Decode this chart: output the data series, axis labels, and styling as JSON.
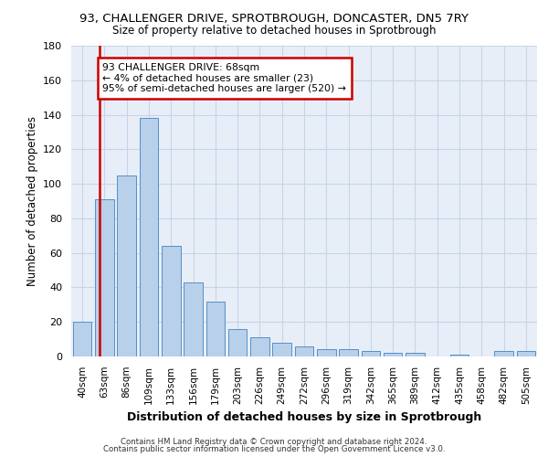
{
  "title_line1": "93, CHALLENGER DRIVE, SPROTBROUGH, DONCASTER, DN5 7RY",
  "title_line2": "Size of property relative to detached houses in Sprotbrough",
  "xlabel": "Distribution of detached houses by size in Sprotbrough",
  "ylabel": "Number of detached properties",
  "categories": [
    "40sqm",
    "63sqm",
    "86sqm",
    "109sqm",
    "133sqm",
    "156sqm",
    "179sqm",
    "203sqm",
    "226sqm",
    "249sqm",
    "272sqm",
    "296sqm",
    "319sqm",
    "342sqm",
    "365sqm",
    "389sqm",
    "412sqm",
    "435sqm",
    "458sqm",
    "482sqm",
    "505sqm"
  ],
  "values": [
    20,
    91,
    105,
    138,
    64,
    43,
    32,
    16,
    11,
    8,
    6,
    4,
    4,
    3,
    2,
    2,
    0,
    1,
    0,
    3,
    3
  ],
  "bar_color": "#b8d0ea",
  "bar_edge_color": "#5590c8",
  "highlight_color": "#cc0000",
  "property_label": "93 CHALLENGER DRIVE: 68sqm",
  "annotation_line2": "← 4% of detached houses are smaller (23)",
  "annotation_line3": "95% of semi-detached houses are larger (520) →",
  "ylim": [
    0,
    180
  ],
  "yticks": [
    0,
    20,
    40,
    60,
    80,
    100,
    120,
    140,
    160,
    180
  ],
  "grid_color": "#c8d4e8",
  "background_color": "#e8eef8",
  "footer_line1": "Contains HM Land Registry data © Crown copyright and database right 2024.",
  "footer_line2": "Contains public sector information licensed under the Open Government Licence v3.0."
}
